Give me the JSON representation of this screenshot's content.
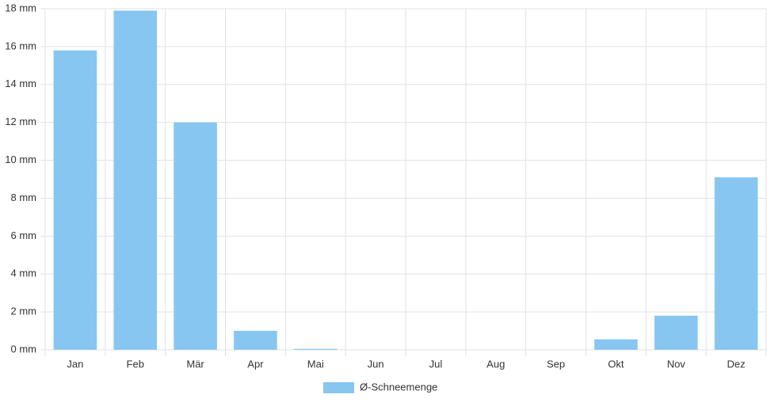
{
  "chart_data": {
    "type": "bar",
    "categories": [
      "Jan",
      "Feb",
      "Mär",
      "Apr",
      "Mai",
      "Jun",
      "Jul",
      "Aug",
      "Sep",
      "Okt",
      "Nov",
      "Dez"
    ],
    "series": [
      {
        "name": "Ø-Schneemenge",
        "color": "#88c6f2",
        "values": [
          15.8,
          17.9,
          12.0,
          1.0,
          0.05,
          0,
          0,
          0,
          0,
          0.55,
          1.8,
          9.1
        ]
      }
    ],
    "ylim": [
      0,
      18
    ],
    "yticks": [
      {
        "value": 0,
        "label": "0 mm"
      },
      {
        "value": 2,
        "label": "2 mm"
      },
      {
        "value": 4,
        "label": "4 mm"
      },
      {
        "value": 6,
        "label": "6 mm"
      },
      {
        "value": 8,
        "label": "8 mm"
      },
      {
        "value": 10,
        "label": "10 mm"
      },
      {
        "value": 12,
        "label": "12 mm"
      },
      {
        "value": 14,
        "label": "14 mm"
      },
      {
        "value": 16,
        "label": "16 mm"
      },
      {
        "value": 18,
        "label": "18 mm"
      }
    ],
    "grid": true,
    "legend": "bottom"
  }
}
